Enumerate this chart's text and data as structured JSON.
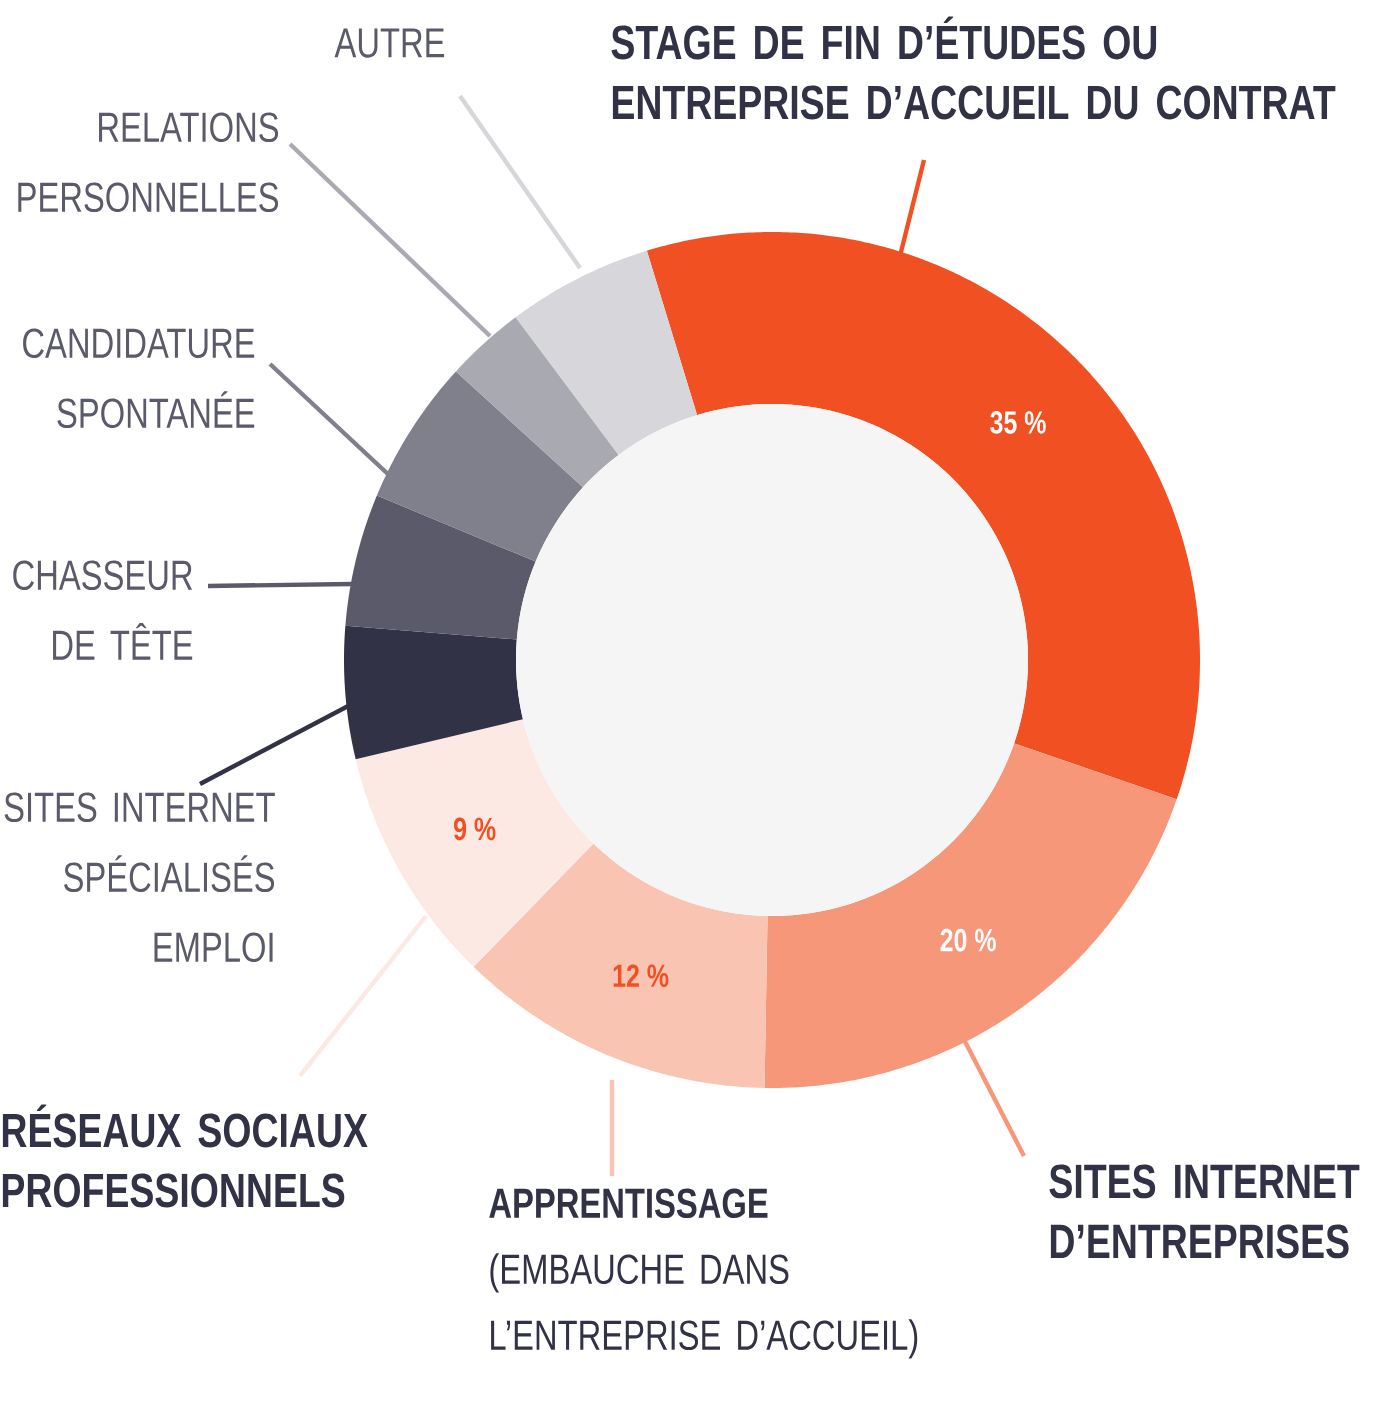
{
  "chart_data": {
    "type": "donut",
    "categories": [
      "STAGE DE FIN D’ÉTUDES OU ENTREPRISE D’ACCUEIL DU CONTRAT",
      "SITES INTERNET D’ENTREPRISES",
      "**APPRENTISSAGE** (EMBAUCHE DANS L’ENTREPRISE D’ACCUEIL)",
      "RÉSEAUX SOCIAUX PROFESSIONNELS",
      "SITES INTERNET SPÉCIALISÉS EMPLOI",
      "CHASSEUR DE TÊTE",
      "CANDIDATURE SPONTANÉE",
      "RELATIONS PERSONNELLES",
      "AUTRE"
    ],
    "values": [
      35,
      20,
      12,
      9,
      5,
      5,
      5.5,
      3,
      5.5
    ],
    "colors": [
      "#f15022",
      "#f7977a",
      "#f9c4b2",
      "#fde9e4",
      "#323246",
      "#5a5a6a",
      "#80808c",
      "#a9a9b1",
      "#d6d6db"
    ],
    "value_labels": [
      "35 %",
      "20 %",
      "12 %",
      "9 %",
      null,
      null,
      null,
      null,
      null
    ]
  }
}
